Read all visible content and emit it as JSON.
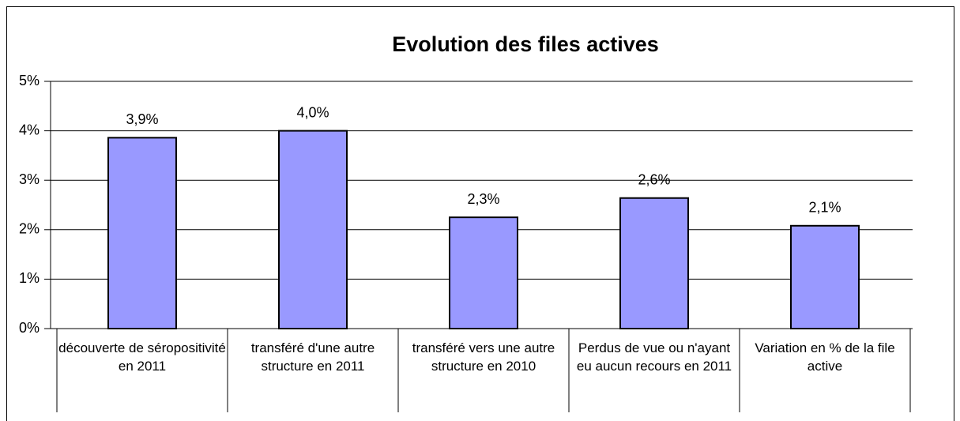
{
  "chart_data": {
    "type": "bar",
    "title": "Evolution des files actives",
    "categories": [
      "découverte de séropositivité en 2011",
      "transféré d'une autre structure en 2011",
      "transféré vers une autre structure en 2010",
      "Perdus de vue ou n'ayant eu aucun recours en 2011",
      "Variation en % de la file active"
    ],
    "values": [
      3.86,
      4.0,
      2.25,
      2.64,
      2.08
    ],
    "value_labels": [
      "3,9%",
      "4,0%",
      "2,3%",
      "2,6%",
      "2,1%"
    ],
    "color": "#9999ff",
    "ylim": [
      0,
      5
    ],
    "yticks": [
      {
        "value": 0,
        "label": "0%"
      },
      {
        "value": 1,
        "label": "1%"
      },
      {
        "value": 2,
        "label": "2%"
      },
      {
        "value": 3,
        "label": "3%"
      },
      {
        "value": 4,
        "label": "4%"
      },
      {
        "value": 5,
        "label": "5%"
      }
    ],
    "grid": true
  }
}
